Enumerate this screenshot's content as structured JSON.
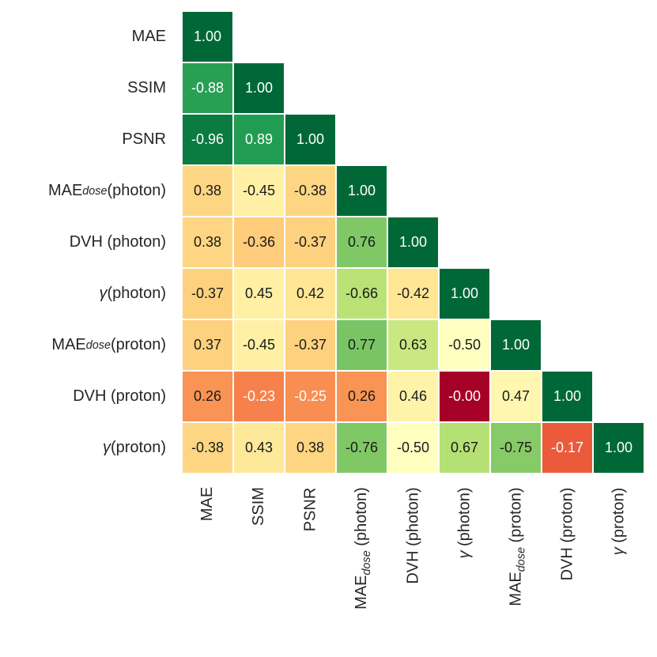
{
  "figure": {
    "background": "#ffffff",
    "axis_label_color": "#262626"
  },
  "chart_data": {
    "type": "heatmap",
    "title": "",
    "subtitle": "",
    "description": "Lower-triangular correlation matrix of image and dose metrics; cell color encodes absolute correlation via RdYlGn colormap (|r|=0 dark red, |r|=1 dark green); values annotated to two decimals",
    "legend_position": "none",
    "grid": false,
    "labels_plain": [
      "MAE",
      "SSIM",
      "PSNR",
      "MAE_dose (photon)",
      "DVH (photon)",
      "γ (photon)",
      "MAE_dose (proton)",
      "DVH (proton)",
      "γ (proton)"
    ],
    "labels": [
      {
        "segments": [
          {
            "t": "MAE",
            "s": "plain"
          }
        ]
      },
      {
        "segments": [
          {
            "t": "SSIM",
            "s": "plain"
          }
        ]
      },
      {
        "segments": [
          {
            "t": "PSNR",
            "s": "plain"
          }
        ]
      },
      {
        "segments": [
          {
            "t": "MAE",
            "s": "plain"
          },
          {
            "t": "dose",
            "s": "sub"
          },
          {
            "t": " (photon)",
            "s": "plain"
          }
        ]
      },
      {
        "segments": [
          {
            "t": "DVH (photon)",
            "s": "plain"
          }
        ]
      },
      {
        "segments": [
          {
            "t": "γ",
            "s": "it"
          },
          {
            "t": " (photon)",
            "s": "plain"
          }
        ]
      },
      {
        "segments": [
          {
            "t": "MAE",
            "s": "plain"
          },
          {
            "t": "dose",
            "s": "sub"
          },
          {
            "t": " (proton)",
            "s": "plain"
          }
        ]
      },
      {
        "segments": [
          {
            "t": "DVH (proton)",
            "s": "plain"
          }
        ]
      },
      {
        "segments": [
          {
            "t": "γ",
            "s": "it"
          },
          {
            "t": " (proton)",
            "s": "plain"
          }
        ]
      }
    ],
    "matrix": [
      [
        "1.00"
      ],
      [
        "-0.88",
        "1.00"
      ],
      [
        "-0.96",
        "0.89",
        "1.00"
      ],
      [
        "0.38",
        "-0.45",
        "-0.38",
        "1.00"
      ],
      [
        "0.38",
        "-0.36",
        "-0.37",
        "0.76",
        "1.00"
      ],
      [
        "-0.37",
        "0.45",
        "0.42",
        "-0.66",
        "-0.42",
        "1.00"
      ],
      [
        "0.37",
        "-0.45",
        "-0.37",
        "0.77",
        "0.63",
        "-0.50",
        "1.00"
      ],
      [
        "0.26",
        "-0.23",
        "-0.25",
        "0.26",
        "0.46",
        "-0.00",
        "0.47",
        "1.00"
      ],
      [
        "-0.38",
        "0.43",
        "0.38",
        "-0.76",
        "-0.50",
        "0.67",
        "-0.75",
        "-0.17",
        "1.00"
      ]
    ],
    "colormap": {
      "name": "RdYlGn over |r|",
      "stops": [
        [
          0.0,
          "#a50026"
        ],
        [
          0.1,
          "#d73027"
        ],
        [
          0.2,
          "#f46d43"
        ],
        [
          0.3,
          "#fdae61"
        ],
        [
          0.4,
          "#fee08b"
        ],
        [
          0.5,
          "#ffffbf"
        ],
        [
          0.6,
          "#d9ef8b"
        ],
        [
          0.7,
          "#a6d96a"
        ],
        [
          0.8,
          "#66bd63"
        ],
        [
          0.9,
          "#1a9850"
        ],
        [
          1.0,
          "#006837"
        ]
      ]
    },
    "value_text_colors": {
      "light": "#ffffff",
      "dark": "#1a1a1a",
      "white_if_abs_leq": 0.25,
      "white_if_abs_geq": 0.8
    }
  }
}
